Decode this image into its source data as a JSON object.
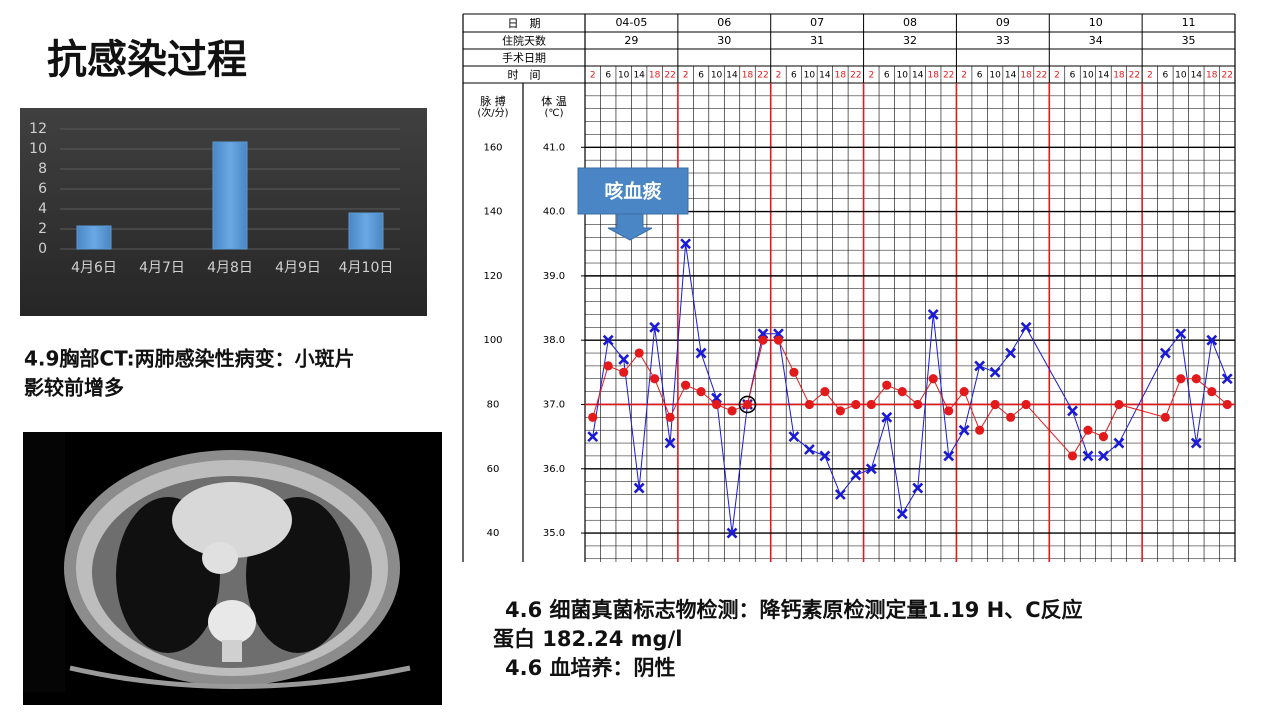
{
  "title": "抗感染过程",
  "ct_caption": [
    "4.9胸部CT:两肺感染性病变：小斑片",
    "影较前增多"
  ],
  "lab_notes": [
    "4.6 细菌真菌标志物检测：降钙素原检测定量1.19 H、C反应",
    "蛋白 182.24 mg/l",
    "4.6 血培养：阴性"
  ],
  "chart_data": [
    {
      "type": "bar",
      "categories": [
        "4月6日",
        "4月7日",
        "4月8日",
        "4月9日",
        "4月10日"
      ],
      "values": [
        2.3,
        0,
        10.7,
        0,
        3.6
      ],
      "color": "#5b9bd5",
      "ylim": [
        0,
        12
      ],
      "yticks": [
        0,
        2,
        4,
        6,
        8,
        10,
        12
      ],
      "grid": true
    },
    {
      "type": "line",
      "row_labels": [
        "日　期",
        "住院天数",
        "手术日期",
        "时　间"
      ],
      "dates": [
        "04-05",
        "06",
        "07",
        "08",
        "09",
        "10",
        "11"
      ],
      "hospital_days": [
        29,
        30,
        31,
        32,
        33,
        34,
        35
      ],
      "categories": [
        "2",
        "6",
        "10",
        "14",
        "18",
        "22",
        "2",
        "6",
        "10",
        "14",
        "18",
        "22",
        "2",
        "6",
        "10",
        "14",
        "18",
        "22",
        "2",
        "6",
        "10",
        "14",
        "18",
        "22",
        "2",
        "6",
        "10",
        "14",
        "18",
        "22",
        "2",
        "6",
        "10",
        "14",
        "18",
        "22",
        "2",
        "6",
        "10",
        "14",
        "18",
        "22"
      ],
      "ylabel": "脉 搏",
      "ylabel_unit": "(次/分)",
      "y2label": "体 温",
      "y2label_unit": "(℃)",
      "annotation": "咳血痰",
      "ylim": [
        31,
        180
      ],
      "yticks": [
        40,
        60,
        80,
        100,
        120,
        140,
        160
      ],
      "y2lim": [
        34.55,
        42.0
      ],
      "y2ticks": [
        {
          "value": 35,
          "label": "35.0"
        },
        {
          "value": 36,
          "label": "36.0"
        },
        {
          "value": 37,
          "label": "37.0"
        },
        {
          "value": 38,
          "label": "38.0"
        },
        {
          "value": 39,
          "label": "39.0"
        },
        {
          "value": 40,
          "label": "40.0"
        },
        {
          "value": 41,
          "label": "41.0"
        }
      ],
      "reference_line": {
        "axis": "y2",
        "value": 37,
        "color": "#e31a1c"
      },
      "series": [
        {
          "color": "#1a1ad6",
          "marker": "x",
          "values": [
            70,
            100,
            94,
            54,
            104,
            68,
            130,
            96,
            82,
            40,
            80,
            102,
            102,
            70,
            66,
            64,
            52,
            58,
            60,
            76,
            46,
            54,
            108,
            64,
            72,
            92,
            90,
            96,
            104,
            null,
            null,
            78,
            64,
            64,
            68,
            null,
            null,
            96,
            102,
            68,
            100,
            88
          ]
        },
        {
          "color": "#e31a1c",
          "marker": "dot",
          "axis": "y2",
          "values": [
            36.8,
            37.6,
            37.5,
            37.8,
            37.4,
            36.8,
            37.3,
            37.2,
            37.0,
            36.9,
            37.0,
            38.0,
            38.0,
            37.5,
            37.0,
            37.2,
            36.9,
            37.0,
            37.0,
            37.3,
            37.2,
            37.0,
            37.4,
            36.9,
            37.2,
            36.6,
            37.0,
            36.8,
            37.0,
            null,
            null,
            36.2,
            36.6,
            36.5,
            37.0,
            null,
            null,
            36.8,
            37.4,
            37.4,
            37.2,
            37.0
          ]
        }
      ]
    }
  ]
}
